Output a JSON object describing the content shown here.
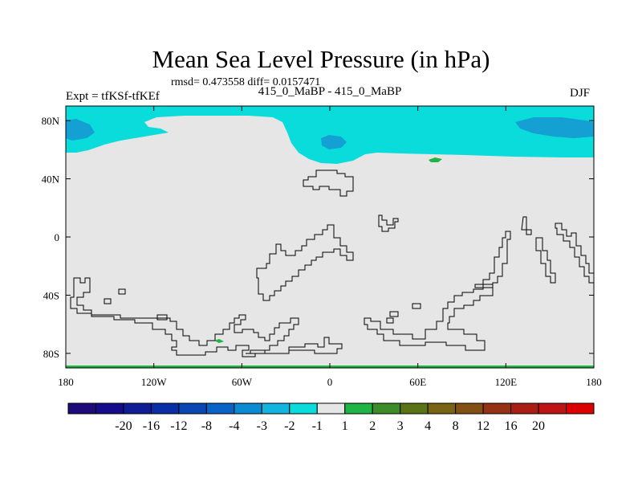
{
  "header": {
    "title": "Mean Sea Level Pressure (in hPa)",
    "stats": "rmsd= 0.473558 diff= 0.0157471",
    "expt": "Expt = tfKSf-tfKEf",
    "center_label": "415_0_MaBP - 415_0_MaBP",
    "season": "DJF"
  },
  "axes": {
    "y_ticks": [
      {
        "value": 80,
        "label": "80N"
      },
      {
        "value": 40,
        "label": "40N"
      },
      {
        "value": 0,
        "label": "0"
      },
      {
        "value": -40,
        "label": "40S"
      },
      {
        "value": -80,
        "label": "80S"
      }
    ],
    "x_ticks": [
      {
        "value": -180,
        "label": "180"
      },
      {
        "value": -120,
        "label": "120W"
      },
      {
        "value": -60,
        "label": "60W"
      },
      {
        "value": 0,
        "label": "0"
      },
      {
        "value": 60,
        "label": "60E"
      },
      {
        "value": 120,
        "label": "120E"
      },
      {
        "value": 180,
        "label": "180"
      }
    ]
  },
  "colorbar": {
    "colors": [
      "#1e0a78",
      "#140c8c",
      "#0f1e96",
      "#0a2ea6",
      "#0a46b4",
      "#0a64c8",
      "#0a8cd2",
      "#14b4e1",
      "#0adcdc",
      "#e6e6e6",
      "#1eb446",
      "#3c8c28",
      "#5a7314",
      "#786414",
      "#825014",
      "#963214",
      "#aa1e14",
      "#be1414",
      "#dc0000"
    ],
    "labels": [
      "-20",
      "-16",
      "-12",
      "-8",
      "-4",
      "-3",
      "-2",
      "-1",
      "1",
      "2",
      "3",
      "4",
      "8",
      "12",
      "16",
      "20"
    ]
  },
  "map_colors": {
    "background": "#e6e6e6",
    "light_cyan": "#0adcdc",
    "medium_blue": "#14a0d2",
    "green": "#1eb446"
  }
}
